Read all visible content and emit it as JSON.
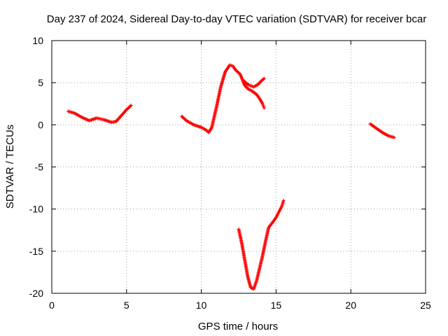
{
  "chart_data": {
    "type": "scatter",
    "title": "Day 237 of 2024, Sidereal Day-to-day VTEC variation (SDTVAR) for receiver bcar",
    "xlabel": "GPS time / hours",
    "ylabel": "SDTVAR / TECUs",
    "xlim": [
      0,
      25
    ],
    "ylim": [
      -20,
      10
    ],
    "xticks": [
      0,
      5,
      10,
      15,
      20,
      25
    ],
    "yticks": [
      -20,
      -15,
      -10,
      -5,
      0,
      5,
      10
    ],
    "xtick_labels": [
      "0",
      "5",
      "10",
      "15",
      "20",
      "25"
    ],
    "ytick_labels": [
      "-20",
      "-15",
      "-10",
      "-5",
      "0",
      "5",
      "10"
    ],
    "grid": true,
    "marker": "+",
    "color": "#ff0000",
    "segments": [
      {
        "x": [
          1.1,
          1.5,
          2.0,
          2.5,
          3.0,
          3.5,
          4.0,
          4.3,
          4.7,
          5.0,
          5.3
        ],
        "y": [
          1.6,
          1.4,
          0.9,
          0.5,
          0.8,
          0.6,
          0.3,
          0.4,
          1.2,
          1.8,
          2.3
        ]
      },
      {
        "x": [
          8.7,
          9.0,
          9.5,
          10.0,
          10.3,
          10.5,
          10.7,
          11.0,
          11.3,
          11.6,
          11.9,
          12.1,
          12.3,
          12.6,
          12.9,
          13.1,
          13.4,
          13.7,
          13.9,
          14.1,
          14.2
        ],
        "y": [
          1.0,
          0.5,
          0.0,
          -0.3,
          -0.6,
          -0.9,
          -0.3,
          2.0,
          4.5,
          6.3,
          7.1,
          7.0,
          6.5,
          6.0,
          4.7,
          4.3,
          4.0,
          3.6,
          3.1,
          2.5,
          2.0
        ]
      },
      {
        "x": [
          12.8,
          13.1,
          13.5,
          13.8,
          14.0,
          14.2
        ],
        "y": [
          5.3,
          4.8,
          4.5,
          4.8,
          5.2,
          5.5
        ]
      },
      {
        "x": [
          12.5,
          12.7,
          12.9,
          13.1,
          13.3,
          13.5,
          13.7,
          13.9,
          14.1,
          14.3,
          14.5,
          14.8,
          15.0,
          15.2,
          15.4,
          15.5
        ],
        "y": [
          -12.4,
          -14.0,
          -16.0,
          -18.0,
          -19.3,
          -19.5,
          -18.5,
          -17.0,
          -15.5,
          -13.8,
          -12.2,
          -11.5,
          -11.0,
          -10.3,
          -9.6,
          -9.0
        ]
      },
      {
        "x": [
          21.3,
          21.7,
          22.1,
          22.5,
          22.9
        ],
        "y": [
          0.1,
          -0.4,
          -0.9,
          -1.3,
          -1.5
        ]
      }
    ]
  }
}
